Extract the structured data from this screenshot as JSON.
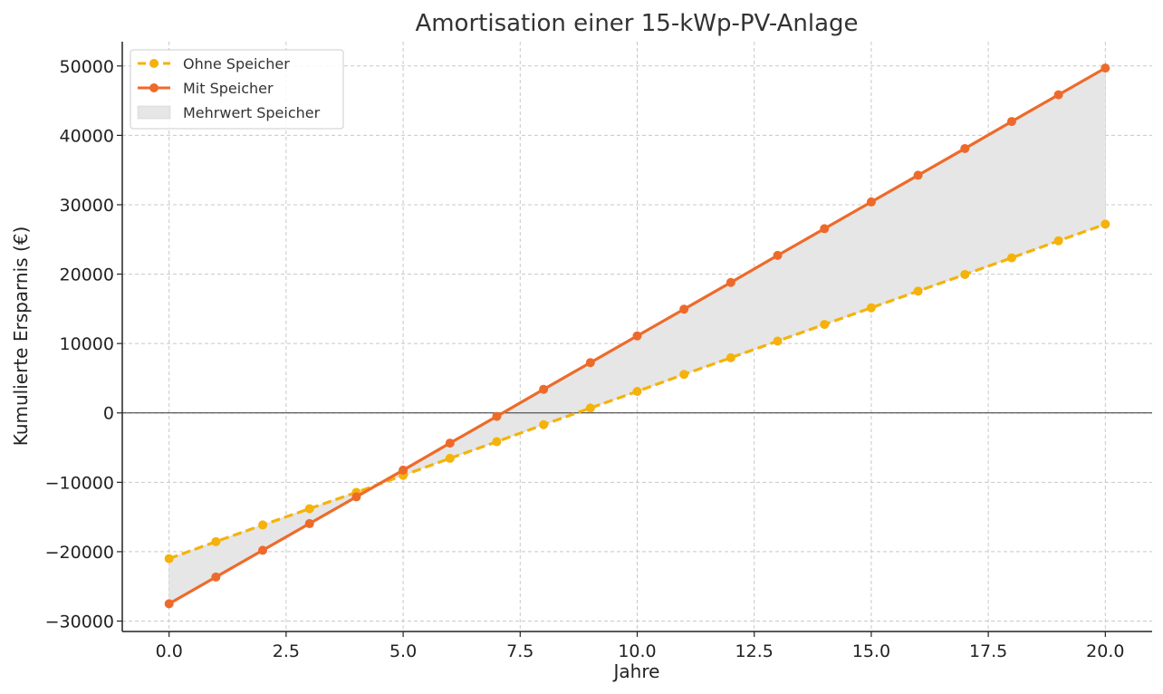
{
  "chart_data": {
    "type": "line",
    "title": "Amortisation einer 15-kWp-PV-Anlage",
    "xlabel": "Jahre",
    "ylabel": "Kumulierte Ersparnis (€)",
    "xlim": [
      -1,
      21
    ],
    "ylim": [
      -31500,
      53500
    ],
    "x_ticks": [
      0,
      2.5,
      5,
      7.5,
      10,
      12.5,
      15,
      17.5,
      20
    ],
    "x_tick_labels": [
      "0.0",
      "2.5",
      "5.0",
      "7.5",
      "10.0",
      "12.5",
      "15.0",
      "17.5",
      "20.0"
    ],
    "y_ticks": [
      -30000,
      -20000,
      -10000,
      0,
      10000,
      20000,
      30000,
      40000,
      50000
    ],
    "y_tick_labels": [
      "−30000",
      "−20000",
      "−10000",
      "0",
      "10000",
      "20000",
      "30000",
      "40000",
      "50000"
    ],
    "grid": true,
    "legend_position": "top-left",
    "x": [
      0,
      1,
      2,
      3,
      4,
      5,
      6,
      7,
      8,
      9,
      10,
      11,
      12,
      13,
      14,
      15,
      16,
      17,
      18,
      19,
      20
    ],
    "series": [
      {
        "name": "Ohne Speicher",
        "color": "#f5b20a",
        "style": "dashed",
        "values": [
          -21000,
          -18550,
          -16150,
          -13800,
          -11450,
          -9000,
          -6550,
          -4150,
          -1700,
          700,
          3100,
          5550,
          7950,
          10350,
          12750,
          15150,
          17550,
          19950,
          22350,
          24800,
          27200
        ]
      },
      {
        "name": "Mit Speicher",
        "color": "#ee6a2a",
        "style": "solid",
        "values": [
          -27500,
          -23650,
          -19800,
          -15950,
          -12100,
          -8250,
          -4350,
          -500,
          3400,
          7250,
          11100,
          14950,
          18800,
          22700,
          26550,
          30400,
          34250,
          38100,
          42000,
          45850,
          49700
        ]
      }
    ],
    "fill_between": {
      "name": "Mehrwert Speicher",
      "color": "#e6e6e6"
    }
  }
}
